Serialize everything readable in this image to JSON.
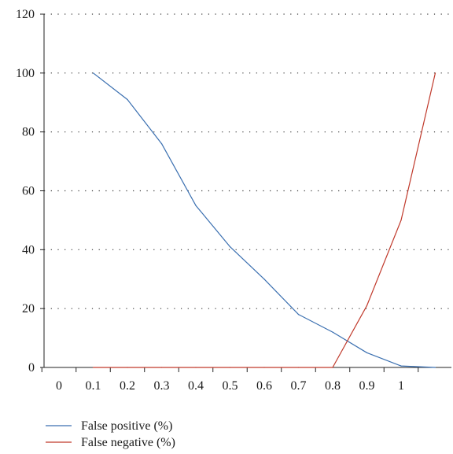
{
  "chart_data": {
    "type": "line",
    "x_tick_labels": [
      "0",
      "0.1",
      "0.2",
      "0.3",
      "0.4",
      "0.5",
      "0.6",
      "0.7",
      "0.8",
      "0.9",
      "1"
    ],
    "y_tick_labels": [
      "0",
      "20",
      "40",
      "60",
      "80",
      "100",
      "120"
    ],
    "ylim": [
      0,
      120
    ],
    "grid": "horizontal dotted",
    "legend_position": "bottom-left",
    "series": [
      {
        "name": "False positive (%)",
        "color": "#3a6fb0",
        "x": [
          0.1,
          0.2,
          0.3,
          0.4,
          0.5,
          0.6,
          0.7,
          0.8,
          0.9,
          1.0,
          1.1
        ],
        "y": [
          100,
          91,
          76,
          55,
          41,
          30,
          18,
          12,
          5,
          0.5,
          0
        ]
      },
      {
        "name": "False negative (%)",
        "color": "#c0392b",
        "x": [
          0.1,
          0.2,
          0.3,
          0.4,
          0.5,
          0.6,
          0.7,
          0.8,
          0.9,
          1.0,
          1.1
        ],
        "y": [
          0,
          0,
          0,
          0,
          0,
          0,
          0,
          0,
          21,
          50,
          100
        ]
      }
    ]
  }
}
